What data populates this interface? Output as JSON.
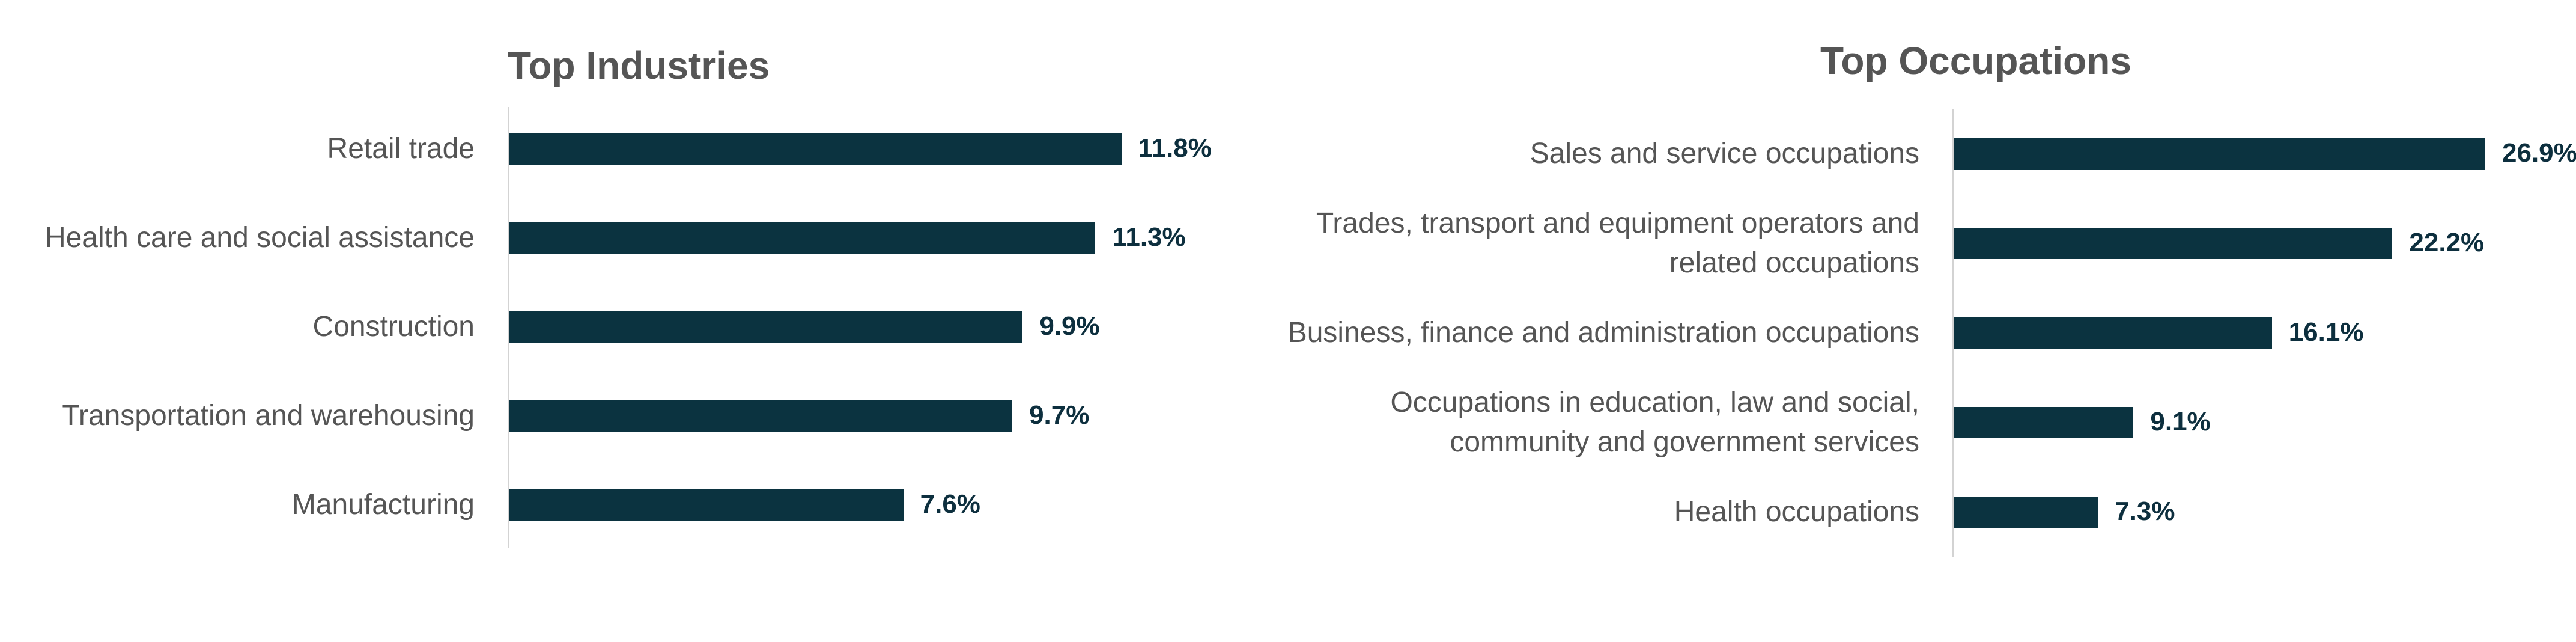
{
  "chart_data": [
    {
      "type": "bar",
      "orientation": "horizontal",
      "title": "Top Industries",
      "categories": [
        "Retail trade",
        "Health care and social assistance",
        "Construction",
        "Transportation and warehousing",
        "Manufacturing"
      ],
      "values": [
        11.8,
        11.3,
        9.9,
        9.7,
        7.6
      ],
      "value_labels": [
        "11.8%",
        "11.3%",
        "9.9%",
        "9.7%",
        "7.6%"
      ],
      "unit": "%",
      "grid": false,
      "legend": "none",
      "bar_color": "#0b3340"
    },
    {
      "type": "bar",
      "orientation": "horizontal",
      "title": "Top Occupations",
      "categories": [
        "Sales and service occupations",
        "Trades, transport and equipment operators and related occupations",
        "Business, finance and administration occupations",
        "Occupations in education, law and social, community and government services",
        "Health occupations"
      ],
      "values": [
        26.9,
        22.2,
        16.1,
        9.1,
        7.3
      ],
      "value_labels": [
        "26.9%",
        "22.2%",
        "16.1%",
        "9.1%",
        "7.3%"
      ],
      "unit": "%",
      "grid": false,
      "legend": "none",
      "bar_color": "#0b3340"
    }
  ]
}
